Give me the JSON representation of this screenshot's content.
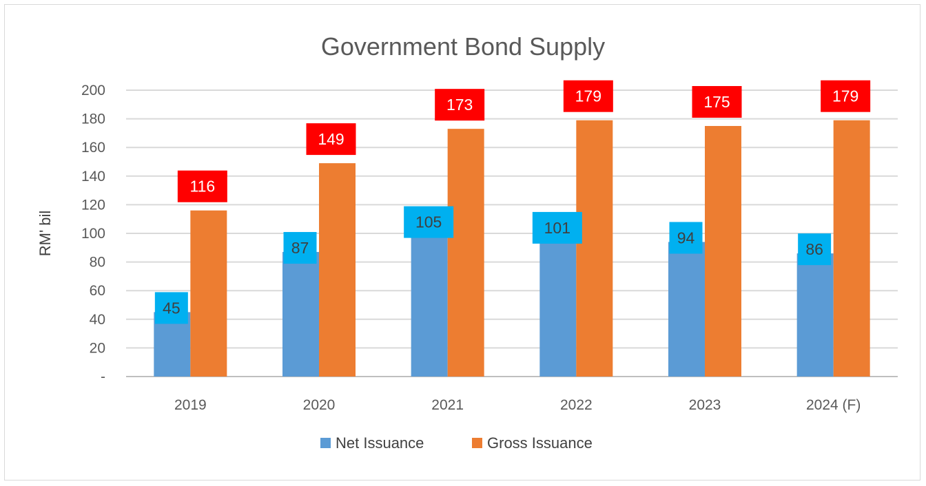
{
  "chart_data": {
    "type": "bar",
    "title": "Government Bond Supply",
    "ylabel": "RM' bil",
    "xlabel": "",
    "categories": [
      "2019",
      "2020",
      "2021",
      "2022",
      "2023",
      "2024 (F)"
    ],
    "ylim": [
      0,
      200
    ],
    "yticks": [
      0,
      20,
      40,
      60,
      80,
      100,
      120,
      140,
      160,
      180,
      200
    ],
    "ytick_labels": [
      "-",
      "20",
      "40",
      "60",
      "80",
      "100",
      "120",
      "140",
      "160",
      "180",
      "200"
    ],
    "grid": true,
    "legend_position": "bottom",
    "series": [
      {
        "name": "Net Issuance",
        "values": [
          45,
          87,
          105,
          101,
          94,
          86
        ],
        "color": "#5b9bd5",
        "label_bg": "#00b0f0"
      },
      {
        "name": "Gross Issuance",
        "values": [
          116,
          149,
          173,
          179,
          175,
          179
        ],
        "color": "#ed7d31",
        "label_bg": "#ff0000"
      }
    ]
  }
}
